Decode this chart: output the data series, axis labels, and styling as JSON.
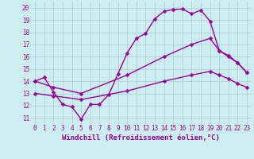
{
  "background_color": "#cceef2",
  "line_color": "#990099",
  "markersize": 2.5,
  "linewidth": 1.0,
  "grid_color": "#aacccc",
  "xlabel": "Windchill (Refroidissement éolien,°C)",
  "xlabel_color": "#990099",
  "xlabel_fontsize": 6.5,
  "tick_color": "#990099",
  "tick_fontsize": 5.5,
  "xlim": [
    -0.5,
    23.5
  ],
  "ylim": [
    10.5,
    20.5
  ],
  "xticks": [
    0,
    1,
    2,
    3,
    4,
    5,
    6,
    7,
    8,
    9,
    10,
    11,
    12,
    13,
    14,
    15,
    16,
    17,
    18,
    19,
    20,
    21,
    22,
    23
  ],
  "yticks": [
    11,
    12,
    13,
    14,
    15,
    16,
    17,
    18,
    19,
    20
  ],
  "curve1_x": [
    0,
    1,
    2,
    3,
    4,
    5,
    6,
    7,
    8,
    9,
    10,
    11,
    12,
    13,
    14,
    15,
    16,
    17,
    18,
    19,
    20,
    21,
    22,
    23
  ],
  "curve1_y": [
    14.0,
    14.3,
    13.1,
    12.1,
    11.9,
    10.9,
    12.1,
    12.1,
    12.9,
    14.6,
    16.3,
    17.5,
    17.9,
    19.1,
    19.7,
    19.85,
    19.9,
    19.5,
    19.8,
    18.9,
    16.5,
    16.1,
    15.5,
    14.7
  ],
  "curve2_x": [
    0,
    2,
    5,
    10,
    14,
    17,
    19,
    20,
    21,
    22,
    23
  ],
  "curve2_y": [
    14.0,
    13.5,
    13.0,
    14.5,
    16.0,
    17.0,
    17.5,
    16.5,
    16.0,
    15.5,
    14.7
  ],
  "curve3_x": [
    0,
    2,
    5,
    10,
    14,
    17,
    19,
    20,
    21,
    22,
    23
  ],
  "curve3_y": [
    13.0,
    12.8,
    12.5,
    13.2,
    14.0,
    14.5,
    14.8,
    14.5,
    14.2,
    13.8,
    13.5
  ]
}
